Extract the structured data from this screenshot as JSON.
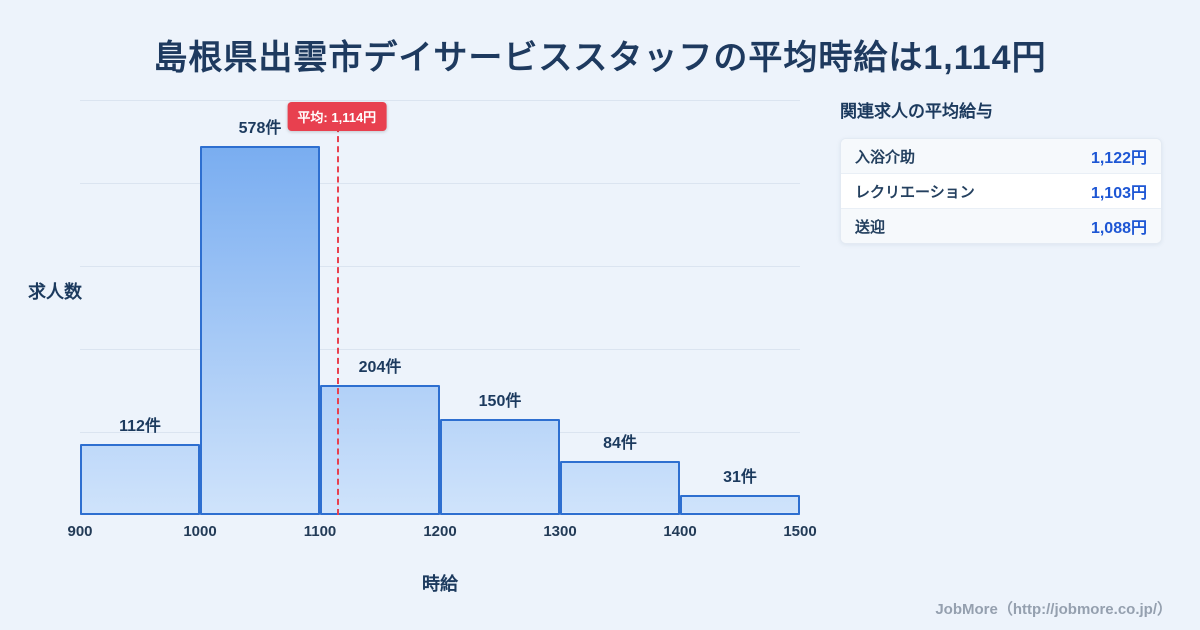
{
  "page": {
    "title": "島根県出雲市デイサービススタッフの平均時給は1,114円",
    "footer": "JobMore（http://jobmore.co.jp/）"
  },
  "chart_data": {
    "type": "bar",
    "title": "島根県出雲市デイサービススタッフの平均時給は1,114円",
    "categories": [
      "900-1000",
      "1000-1100",
      "1100-1200",
      "1200-1300",
      "1300-1400",
      "1400-1500"
    ],
    "values": [
      112,
      578,
      204,
      150,
      84,
      31
    ],
    "bar_labels": [
      "112件",
      "578件",
      "204件",
      "150件",
      "84件",
      "31件"
    ],
    "x_ticks": [
      900,
      1000,
      1100,
      1200,
      1300,
      1400,
      1500
    ],
    "x_range": [
      900,
      1500
    ],
    "ylim": [
      0,
      650
    ],
    "grid": true,
    "legend": "none",
    "xlabel": "時給",
    "ylabel": "求人数",
    "average": {
      "value": 1114,
      "label": "平均: 1,114円"
    },
    "colors": {
      "bar_fill_top": "#6ea6ef",
      "bar_fill_bottom": "#cfe3fb",
      "bar_border": "#2e6fd0",
      "average_line": "#e8404f",
      "title_text": "#1e3a5f"
    }
  },
  "sidebar": {
    "heading": "関連求人の平均給与",
    "rows": [
      {
        "label": "入浴介助",
        "value": "1,122円"
      },
      {
        "label": "レクリエーション",
        "value": "1,103円"
      },
      {
        "label": "送迎",
        "value": "1,088円"
      }
    ]
  }
}
